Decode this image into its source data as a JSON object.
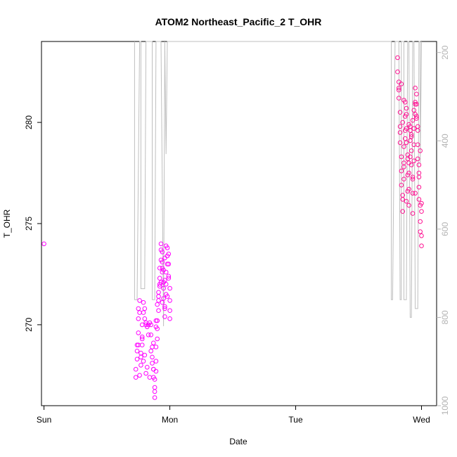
{
  "chart_data": {
    "type": "scatter",
    "title": "ATOM2 Northeast_Pacific_2 T_OHR",
    "xlabel": "Date",
    "ylabel": "T_OHR",
    "x_ticks": [
      "Sun",
      "Mon",
      "Tue",
      "Wed"
    ],
    "y_ticks": [
      270,
      275,
      280
    ],
    "y_right_ticks": [
      200,
      400,
      600,
      800,
      1000
    ],
    "xlim_days": [
      -0.02,
      3.12
    ],
    "ylim": [
      266.0,
      284.0
    ],
    "y_right_lim": [
      1000,
      175
    ],
    "colors": {
      "points_magenta": "#ff00ff",
      "points_pink": "#ff1493",
      "pressure_line": "#bfbfbf",
      "right_axis": "#b3b3b3"
    },
    "series": [
      {
        "marker": "circle-open",
        "x": [
          0.0,
          0.73,
          0.73,
          0.74,
          0.74,
          0.74,
          0.75,
          0.75,
          0.75,
          0.76,
          0.76,
          0.77,
          0.77,
          0.78,
          0.78,
          0.78,
          0.79,
          0.79,
          0.8,
          0.8,
          0.81,
          0.81,
          0.82,
          0.83,
          0.84,
          0.85,
          0.85,
          0.86,
          0.86,
          0.87,
          0.87,
          0.88,
          0.88,
          0.88,
          0.89,
          0.89,
          0.89,
          0.9,
          0.9,
          0.9,
          0.91,
          0.91,
          0.91,
          0.92,
          0.92,
          0.92,
          0.93,
          0.93,
          0.93,
          0.94,
          0.94,
          0.94,
          0.95,
          0.95,
          0.95,
          0.96,
          0.96,
          0.96,
          0.97,
          0.97,
          0.97,
          0.98,
          0.98,
          0.98,
          0.99,
          0.99,
          0.99,
          1.0,
          1.0,
          1.0,
          0.76,
          0.78,
          0.8,
          0.82,
          0.84,
          0.9,
          0.92,
          0.94,
          0.97,
          0.99,
          0.87,
          0.88,
          0.86,
          0.89,
          0.91,
          0.93,
          0.95,
          0.96,
          0.98,
          1.0,
          0.75,
          0.77,
          0.79,
          0.81,
          0.83,
          0.85,
          0.87,
          0.89,
          0.94,
          0.96
        ],
        "y": [
          274.0,
          267.4,
          267.8,
          268.3,
          268.7,
          269.0,
          269.6,
          270.3,
          270.8,
          271.2,
          267.5,
          268.0,
          268.6,
          269.0,
          269.4,
          270.0,
          270.6,
          271.1,
          270.8,
          270.3,
          270.1,
          270.0,
          269.9,
          270.0,
          270.1,
          270.0,
          269.5,
          268.9,
          268.4,
          267.8,
          267.4,
          266.9,
          266.4,
          267.3,
          267.7,
          268.2,
          268.9,
          269.3,
          269.8,
          270.2,
          270.7,
          271.2,
          271.6,
          272.0,
          272.3,
          272.8,
          273.2,
          273.7,
          274.0,
          273.6,
          273.1,
          272.6,
          272.1,
          271.8,
          271.3,
          270.8,
          270.4,
          270.9,
          271.5,
          272.0,
          272.6,
          273.0,
          273.4,
          273.8,
          273.5,
          273.0,
          272.3,
          271.8,
          271.2,
          270.7,
          270.6,
          269.3,
          268.5,
          267.9,
          267.4,
          271.0,
          271.9,
          272.8,
          273.9,
          272.4,
          267.8,
          266.7,
          268.1,
          269.9,
          271.4,
          272.1,
          272.7,
          273.3,
          271.4,
          270.3,
          269.0,
          268.4,
          268.2,
          267.6,
          269.5,
          268.7,
          269.1,
          270.2,
          271.1,
          272.2
        ]
      },
      {
        "marker": "circle-open",
        "x": [
          2.81,
          2.81,
          2.82,
          2.82,
          2.82,
          2.83,
          2.83,
          2.83,
          2.84,
          2.84,
          2.84,
          2.85,
          2.85,
          2.85,
          2.86,
          2.86,
          2.86,
          2.87,
          2.87,
          2.87,
          2.88,
          2.88,
          2.88,
          2.89,
          2.89,
          2.89,
          2.9,
          2.9,
          2.9,
          2.91,
          2.91,
          2.91,
          2.92,
          2.92,
          2.92,
          2.93,
          2.93,
          2.93,
          2.94,
          2.94,
          2.94,
          2.95,
          2.95,
          2.95,
          2.96,
          2.96,
          2.96,
          2.97,
          2.97,
          2.97,
          2.98,
          2.98,
          2.98,
          2.99,
          2.99,
          2.99,
          3.0,
          3.0,
          3.0,
          2.83,
          2.85,
          2.87,
          2.89,
          2.91,
          2.93,
          2.95,
          2.97,
          2.99,
          2.84,
          2.86,
          2.88,
          2.9,
          2.92,
          2.94,
          2.96,
          2.98,
          2.82,
          2.88,
          2.9,
          2.93,
          2.95,
          2.98,
          3.0,
          2.86
        ],
        "y": [
          283.2,
          282.5,
          282.0,
          281.6,
          281.2,
          280.5,
          279.8,
          279.0,
          278.3,
          277.6,
          276.9,
          276.2,
          275.6,
          276.4,
          277.2,
          278.0,
          278.8,
          279.6,
          280.3,
          281.0,
          280.4,
          279.7,
          279.0,
          278.2,
          277.4,
          276.6,
          275.9,
          276.7,
          277.5,
          278.3,
          279.1,
          279.8,
          279.3,
          278.6,
          277.9,
          277.2,
          276.5,
          277.3,
          278.1,
          278.9,
          279.7,
          280.4,
          281.0,
          281.7,
          281.4,
          280.9,
          280.3,
          279.6,
          278.9,
          278.2,
          277.5,
          276.8,
          276.2,
          275.9,
          275.1,
          274.6,
          273.9,
          274.4,
          275.6,
          279.5,
          280.0,
          279.2,
          278.4,
          279.6,
          280.1,
          280.9,
          279.8,
          278.6,
          281.9,
          281.1,
          280.7,
          279.9,
          279.4,
          280.6,
          280.2,
          277.9,
          281.7,
          276.1,
          278.0,
          275.5,
          276.5,
          277.3,
          276.0,
          277.8
        ]
      }
    ],
    "pressure_line_x": [
      0.72,
      0.72,
      0.73,
      0.74,
      0.76,
      0.77,
      0.77,
      0.8,
      0.81,
      0.82,
      0.82,
      0.85,
      0.86,
      0.86,
      0.88,
      0.89,
      0.89,
      0.9,
      0.91,
      0.92,
      0.93,
      0.93,
      0.95,
      0.96,
      0.96,
      0.97,
      0.98,
      0.98,
      1.0,
      2.76,
      2.76,
      2.77,
      2.79,
      2.8,
      2.8,
      2.82,
      2.83,
      2.84,
      2.84,
      2.85,
      2.86,
      2.86,
      2.88,
      2.89,
      2.9,
      2.9,
      2.91,
      2.92,
      2.93,
      2.93,
      2.94,
      2.95,
      2.97,
      2.98,
      2.99,
      2.99,
      3.0
    ],
    "pressure_line_y": [
      175,
      760,
      760,
      760,
      175,
      175,
      735,
      735,
      175,
      175,
      175,
      175,
      175,
      760,
      760,
      175,
      175,
      175,
      175,
      175,
      175,
      175,
      820,
      175,
      175,
      430,
      175,
      175,
      175,
      175,
      760,
      760,
      175,
      175,
      175,
      175,
      760,
      760,
      175,
      175,
      175,
      760,
      760,
      175,
      175,
      175,
      800,
      800,
      175,
      175,
      175,
      780,
      780,
      175,
      175,
      450,
      175
    ]
  }
}
